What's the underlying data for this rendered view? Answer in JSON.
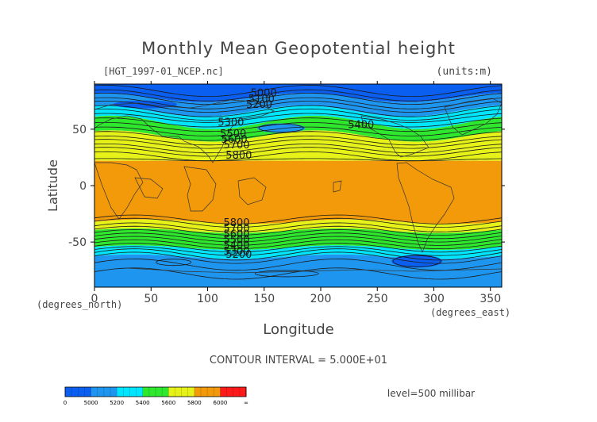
{
  "chart_data": {
    "type": "heatmap",
    "title": "Monthly Mean Geopotential height",
    "subtitle_left": "[HGT_1997-01_NCEP.nc]",
    "units_note": "(units:m)",
    "xlabel": "Longitude",
    "ylabel": "Latitude",
    "x_unit_label": "(degrees_east)",
    "y_unit_label": "(degrees_north)",
    "xlim": [
      0,
      360
    ],
    "ylim": [
      -90,
      90
    ],
    "x_ticks": [
      0,
      50,
      100,
      150,
      200,
      250,
      300,
      350
    ],
    "y_ticks": [
      50,
      0,
      -50
    ],
    "contour_interval_text": "CONTOUR INTERVAL = 5.000E+01",
    "level_text": "level=500 millibar",
    "contour_labels": [
      "5000",
      "5100",
      "5200",
      "5300",
      "5400",
      "5500",
      "5600",
      "5700",
      "5800"
    ],
    "colorbar": {
      "tick_labels": [
        "0",
        "5000",
        "5200",
        "5400",
        "5600",
        "5800",
        "6000",
        "∞"
      ],
      "colors": [
        "#0a5ff0",
        "#1e96f0",
        "#00e6ff",
        "#2ee82e",
        "#e6f218",
        "#f29a0a",
        "#ff1a1a"
      ]
    }
  }
}
